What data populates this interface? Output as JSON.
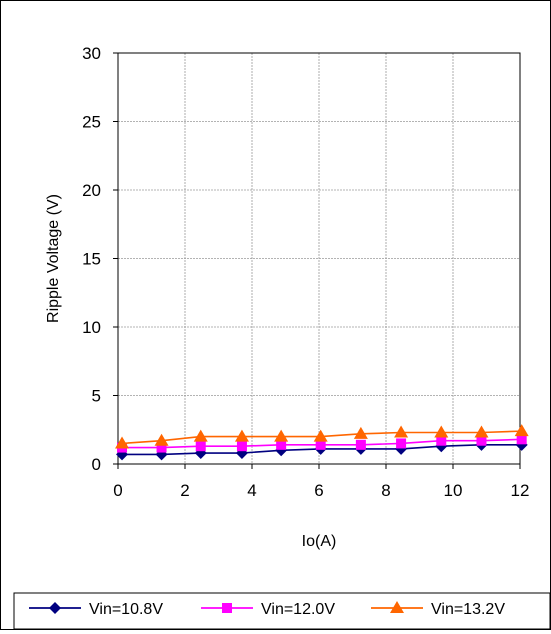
{
  "chart_data": {
    "type": "line",
    "title": "",
    "xlabel": "Io(A)",
    "ylabel": "Ripple Voltage (V)",
    "xlim": [
      0,
      12
    ],
    "ylim": [
      0,
      30
    ],
    "xticks": [
      "0",
      "2",
      "4",
      "6",
      "8",
      "10",
      "12"
    ],
    "yticks": [
      "0",
      "5",
      "10",
      "15",
      "20",
      "25",
      "30"
    ],
    "grid": true,
    "legend_position": "bottom",
    "x": [
      0.12,
      1.3,
      2.47,
      3.7,
      4.87,
      6.05,
      7.25,
      8.45,
      9.65,
      10.85,
      12.05
    ],
    "series": [
      {
        "name": "Vin=10.8V",
        "color": "#000080",
        "marker": "diamond",
        "values": [
          0.7,
          0.7,
          0.8,
          0.8,
          1.0,
          1.1,
          1.1,
          1.1,
          1.3,
          1.4,
          1.4
        ]
      },
      {
        "name": "Vin=12.0V",
        "color": "#ff00ff",
        "marker": "square",
        "values": [
          1.2,
          1.2,
          1.3,
          1.3,
          1.4,
          1.4,
          1.4,
          1.5,
          1.7,
          1.7,
          1.8
        ]
      },
      {
        "name": "Vin=13.2V",
        "color": "#ff6600",
        "marker": "triangle",
        "values": [
          1.5,
          1.7,
          2.0,
          2.0,
          2.0,
          2.0,
          2.2,
          2.3,
          2.3,
          2.3,
          2.4
        ]
      }
    ]
  }
}
